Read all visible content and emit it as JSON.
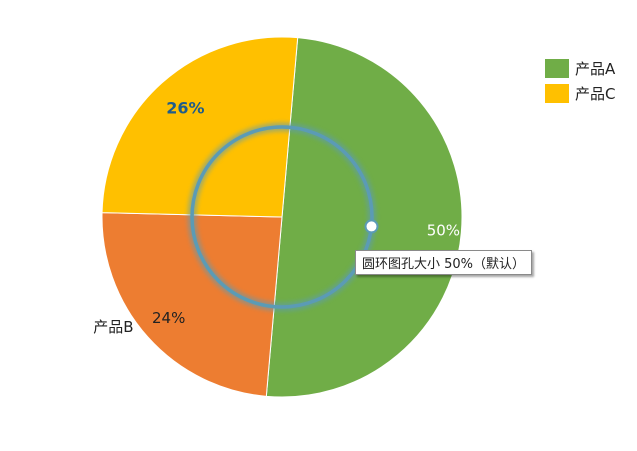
{
  "chart_data": {
    "type": "pie",
    "categories": [
      "产品A",
      "产品B",
      "产品C"
    ],
    "values": [
      50,
      24,
      26
    ],
    "percent_labels": [
      "50%",
      "24%",
      "26%"
    ],
    "colors": [
      "#70AD47",
      "#ED7D31",
      "#FFC000"
    ],
    "legend_position": "top-right",
    "data_label_colors": [
      "#ffffff",
      "#222222",
      "#1F5C8A"
    ],
    "category_label_shown": "产品B"
  },
  "tooltip": {
    "text": "圆环图孔大小 50%（默认）",
    "hole_ring_color": "#5B9BB5"
  }
}
